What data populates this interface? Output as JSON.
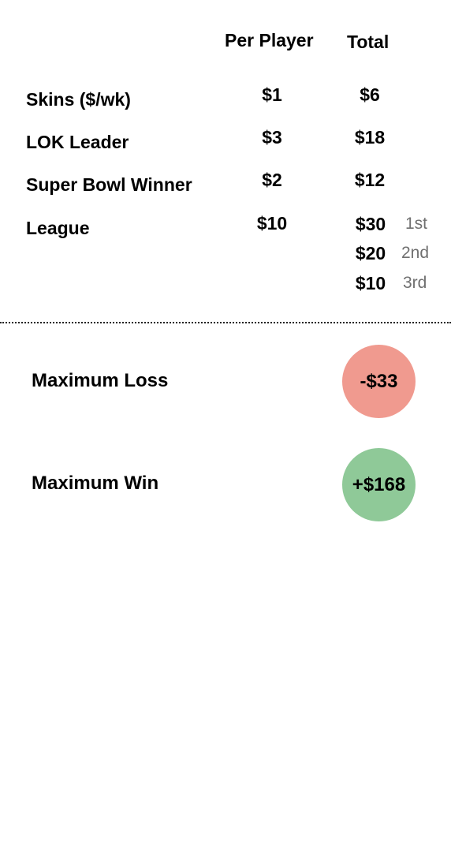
{
  "header": {
    "per_player": "Per Player",
    "total": "Total"
  },
  "rows": [
    {
      "label": "Skins ($/wk)",
      "per_player": "$1",
      "total": "$6"
    },
    {
      "label": "LOK Leader",
      "per_player": "$3",
      "total": "$18"
    },
    {
      "label": "Super Bowl Winner",
      "per_player": "$2",
      "total": "$12"
    },
    {
      "label": "League",
      "per_player": "$10",
      "payouts": [
        {
          "amount": "$30",
          "place": "1st"
        },
        {
          "amount": "$20",
          "place": "2nd"
        },
        {
          "amount": "$10",
          "place": "3rd"
        }
      ]
    }
  ],
  "summary": {
    "max_loss_label": "Maximum Loss",
    "max_loss_value": "-$33",
    "max_win_label": "Maximum Win",
    "max_win_value": "+$168"
  },
  "colors": {
    "loss": "#F09A8F",
    "win": "#8FC998"
  }
}
